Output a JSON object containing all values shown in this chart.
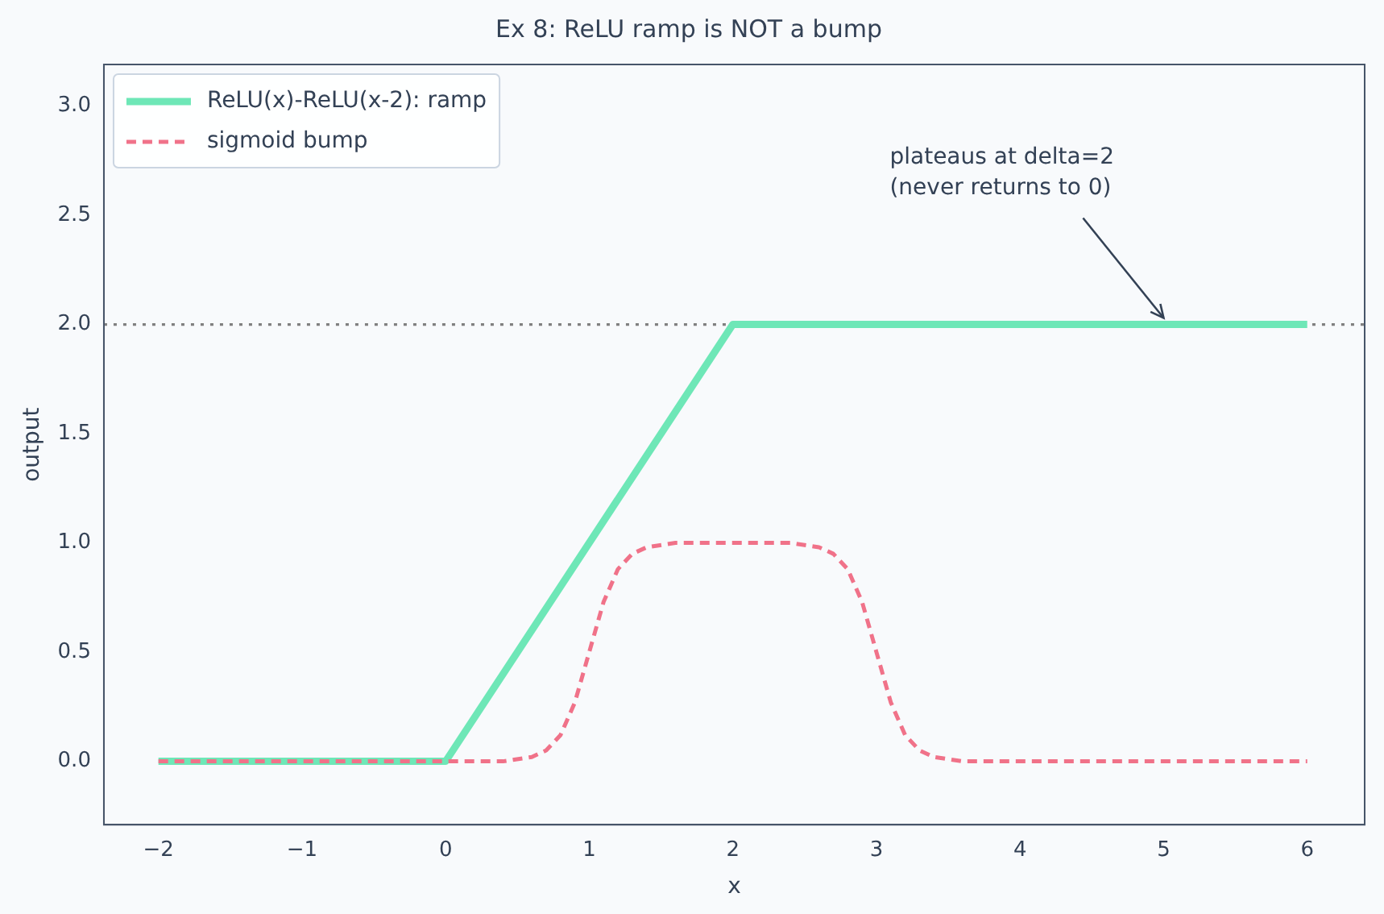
{
  "chart_data": {
    "type": "line",
    "title": "Ex 8: ReLU ramp is NOT a bump",
    "xlabel": "x",
    "ylabel": "output",
    "series": [
      {
        "name": "ReLU(x)-ReLU(x-2): ramp",
        "color": "#6ee7b7",
        "x": [
          -2,
          0,
          2,
          6
        ],
        "values": [
          0,
          0,
          2,
          2
        ],
        "line_style": "solid"
      },
      {
        "name": "sigmoid bump",
        "color": "#f07289",
        "x": [
          -2,
          0,
          0.4,
          0.6,
          0.7,
          0.8,
          0.9,
          1,
          1.1,
          1.2,
          1.3,
          1.4,
          1.6,
          2,
          2.4,
          2.6,
          2.7,
          2.8,
          2.9,
          3,
          3.1,
          3.2,
          3.3,
          3.4,
          3.6,
          4,
          6
        ],
        "values": [
          0,
          0,
          0,
          0.02,
          0.05,
          0.12,
          0.27,
          0.5,
          0.73,
          0.88,
          0.95,
          0.98,
          1,
          1,
          1,
          0.98,
          0.95,
          0.88,
          0.73,
          0.5,
          0.27,
          0.12,
          0.05,
          0.02,
          0,
          0,
          0
        ],
        "line_style": "dashed"
      }
    ],
    "xlim": [
      -2.38,
      6.4
    ],
    "xticks": [
      {
        "value": -2,
        "label": "−2"
      },
      {
        "value": -1,
        "label": "−1"
      },
      0,
      1,
      2,
      3,
      4,
      5,
      6
    ],
    "ylim": [
      -0.29,
      3.19
    ],
    "yticks": [
      {
        "value": 0,
        "label": "0.0"
      },
      {
        "value": 0.5,
        "label": "0.5"
      },
      {
        "value": 1,
        "label": "1.0"
      },
      {
        "value": 1.5,
        "label": "1.5"
      },
      {
        "value": 2,
        "label": "2.0"
      },
      {
        "value": 2.5,
        "label": "2.5"
      },
      {
        "value": 3,
        "label": "3.0"
      }
    ],
    "ref_lines": [
      {
        "axis": "y",
        "value": 2,
        "color": "#808080",
        "line_style": "dotted"
      }
    ],
    "annotations": [
      {
        "text": "plateaus at delta=2\n(never returns to 0)",
        "x": 5,
        "y": 2
      }
    ],
    "legend": "top left",
    "grid": false,
    "marker": "none"
  }
}
